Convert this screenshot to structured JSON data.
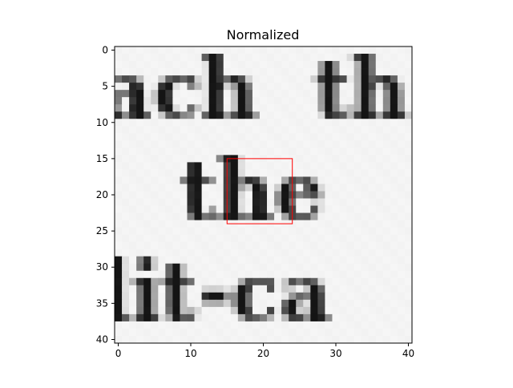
{
  "title": "Normalized",
  "image": {
    "description_words": [
      "ach",
      "th",
      "the",
      "lit-ca"
    ],
    "rows": 41,
    "cols": 41
  },
  "x_axis": {
    "ticks": [
      0,
      10,
      20,
      30,
      40
    ],
    "range": [
      -0.5,
      40.5
    ]
  },
  "y_axis": {
    "ticks": [
      0,
      5,
      10,
      15,
      20,
      25,
      30,
      35,
      40
    ],
    "range": [
      -0.5,
      40.5
    ],
    "inverted": true
  },
  "highlight_box": {
    "x0": 15,
    "y0": 15,
    "x1": 24,
    "y1": 24,
    "color": "#ff0000"
  },
  "colors": {
    "ink": "#1a1a1a",
    "paper": "#f4f4f4",
    "axis": "#000000"
  }
}
